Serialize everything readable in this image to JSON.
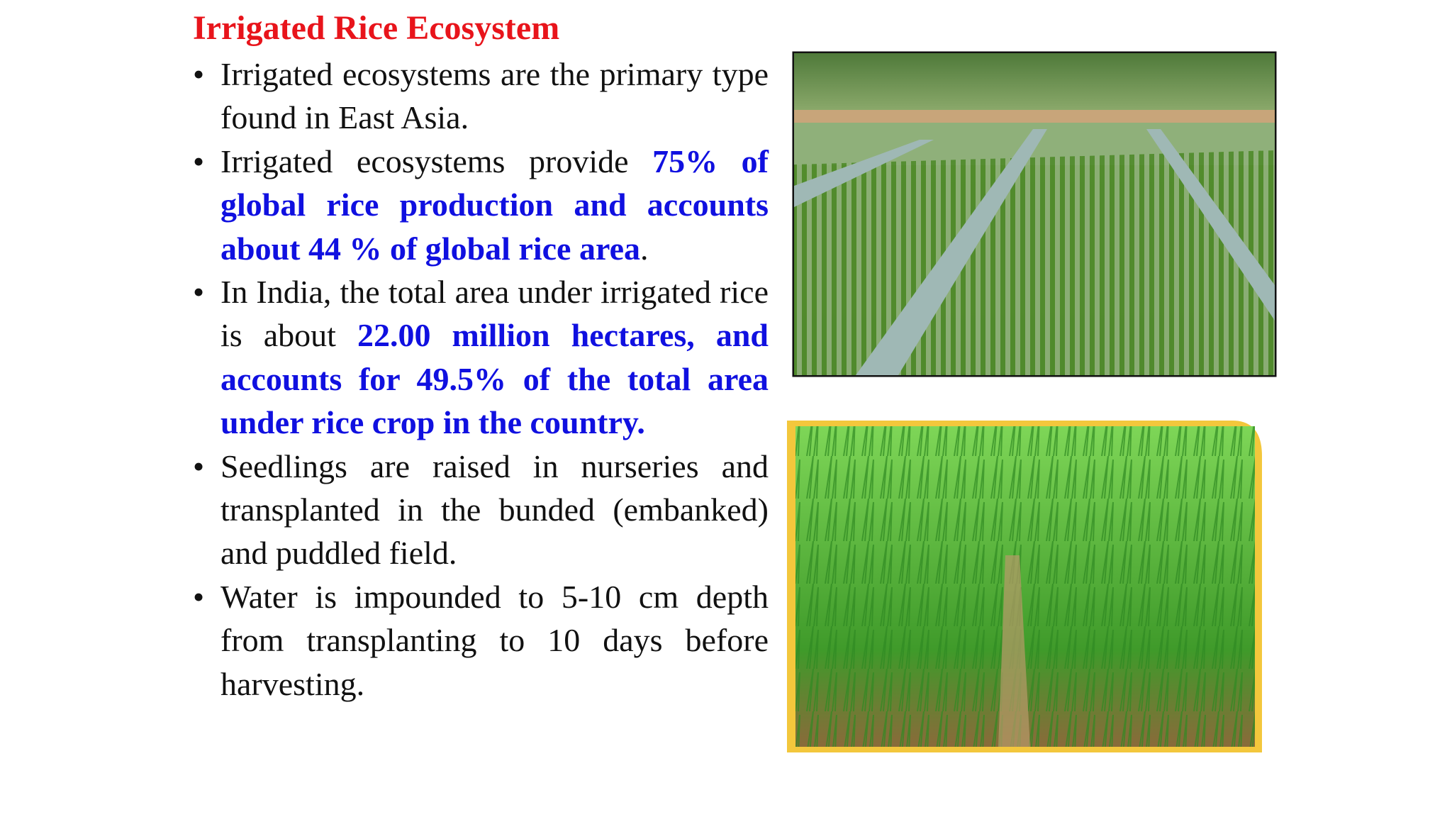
{
  "title": "Irrigated Rice Ecosystem",
  "bullets": [
    {
      "segments": [
        {
          "text": "Irrigated ecosystems are the primary type found in East Asia."
        }
      ]
    },
    {
      "segments": [
        {
          "text": "Irrigated ecosystems provide "
        },
        {
          "text": "75% of global rice production and accounts about 44 % of global rice area",
          "color": "#1010e0"
        },
        {
          "text": "."
        }
      ]
    },
    {
      "segments": [
        {
          "text": "In India, the total area under irrigated rice is about "
        },
        {
          "text": "22.00 million hectares, and accounts for 49.5% of the total area under rice crop in the country.",
          "color": "#1010e0"
        }
      ]
    },
    {
      "segments": [
        {
          "text": "Seedlings are raised in nurseries and transplanted in the bunded (embanked) and puddled field."
        }
      ]
    },
    {
      "segments": [
        {
          "text": "Water is impounded to 5-10 cm depth from transplanting to 10 days before harvesting."
        }
      ]
    }
  ]
}
